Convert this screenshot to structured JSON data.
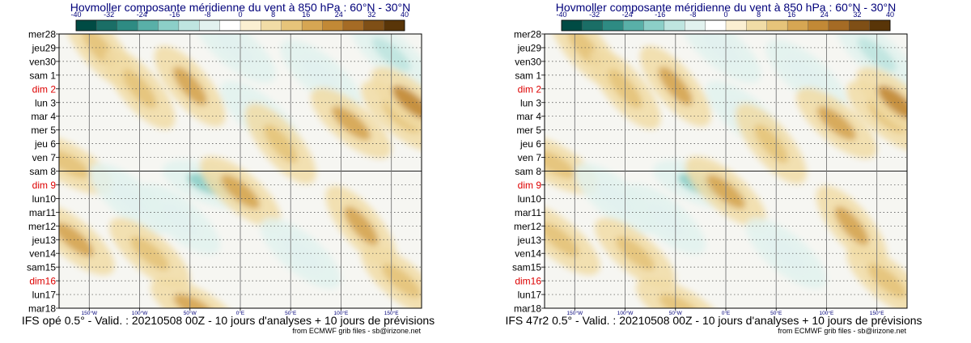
{
  "chart_data": [
    {
      "type": "heatmap",
      "title": "Hovmoller composante méridienne du vent à 850 hPa : 60°N - 30°N",
      "colorbar": {
        "ticks": [
          "-40",
          "-32",
          "-24",
          "-16",
          "-8",
          "0",
          "8",
          "16",
          "24",
          "32",
          "40"
        ],
        "colors": [
          "#004b44",
          "#1a6e66",
          "#2e8b83",
          "#59b0a8",
          "#8ccfc8",
          "#bfe5e0",
          "#e2f2ef",
          "#ffffff",
          "#fbefd2",
          "#f1dca6",
          "#e6c47a",
          "#d6a653",
          "#c28936",
          "#a56b25",
          "#7f4f16",
          "#593508"
        ]
      },
      "y_labels": [
        {
          "text": "mer28",
          "weekend": false
        },
        {
          "text": "jeu29",
          "weekend": false
        },
        {
          "text": "ven30",
          "weekend": false
        },
        {
          "text": "sam 1",
          "weekend": false
        },
        {
          "text": "dim 2",
          "weekend": true
        },
        {
          "text": "lun 3",
          "weekend": false
        },
        {
          "text": "mar 4",
          "weekend": false
        },
        {
          "text": "mer 5",
          "weekend": false
        },
        {
          "text": "jeu 6",
          "weekend": false
        },
        {
          "text": "ven 7",
          "weekend": false
        },
        {
          "text": "sam 8",
          "weekend": false
        },
        {
          "text": "dim 9",
          "weekend": true
        },
        {
          "text": "lun10",
          "weekend": false
        },
        {
          "text": "mar11",
          "weekend": false
        },
        {
          "text": "mer12",
          "weekend": false
        },
        {
          "text": "jeu13",
          "weekend": false
        },
        {
          "text": "ven14",
          "weekend": false
        },
        {
          "text": "sam15",
          "weekend": false
        },
        {
          "text": "dim16",
          "weekend": true
        },
        {
          "text": "lun17",
          "weekend": false
        },
        {
          "text": "mar18",
          "weekend": false
        }
      ],
      "analysis_forecast_split": "sam 8",
      "x_ticks": [
        "150°W",
        "100°W",
        "50°W",
        "0°E",
        "50°E",
        "100°E",
        "150°E"
      ],
      "x_range": [
        -180,
        180
      ],
      "footer": "IFS opé 0.5° - Valid. : 20210508 00Z - 10 jours d'analyses + 10 jours de prévisions",
      "credit": "from ECMWF grib files - sb@irizone.net",
      "features": [
        {
          "lon": -170,
          "day": 9.5,
          "value": 14,
          "slope": -12
        },
        {
          "lon": -165,
          "day": 15,
          "value": 16,
          "slope": -10
        },
        {
          "lon": -140,
          "day": 1,
          "value": 12,
          "slope": -8
        },
        {
          "lon": -110,
          "day": 12,
          "value": -10,
          "slope": -10
        },
        {
          "lon": -100,
          "day": 4,
          "value": 10,
          "slope": -8
        },
        {
          "lon": -90,
          "day": 16,
          "value": 10,
          "slope": -10
        },
        {
          "lon": -50,
          "day": 3.8,
          "value": 16,
          "slope": -8
        },
        {
          "lon": -30,
          "day": 11,
          "value": -16,
          "slope": -14
        },
        {
          "lon": -5,
          "day": 1,
          "value": -8,
          "slope": -10
        },
        {
          "lon": 0,
          "day": 11.5,
          "value": 18,
          "slope": -10
        },
        {
          "lon": -45,
          "day": 20,
          "value": 16,
          "slope": -12
        },
        {
          "lon": 20,
          "day": 6,
          "value": -8,
          "slope": -10
        },
        {
          "lon": 40,
          "day": 8,
          "value": 10,
          "slope": -8
        },
        {
          "lon": 80,
          "day": 3,
          "value": -8,
          "slope": -10
        },
        {
          "lon": 110,
          "day": 6.5,
          "value": 18,
          "slope": -10
        },
        {
          "lon": 120,
          "day": 14,
          "value": 16,
          "slope": -8
        },
        {
          "lon": 150,
          "day": 1.5,
          "value": -12,
          "slope": -10
        },
        {
          "lon": 160,
          "day": 6,
          "value": 14,
          "slope": -10
        },
        {
          "lon": 170,
          "day": 5,
          "value": 22,
          "slope": -10
        },
        {
          "lon": 160,
          "day": 18,
          "value": 12,
          "slope": -10
        },
        {
          "lon": -60,
          "day": 13.5,
          "value": -6,
          "slope": -10
        },
        {
          "lon": 60,
          "day": 16,
          "value": -6,
          "slope": -10
        }
      ]
    },
    {
      "type": "heatmap",
      "title": "Hovmoller composante méridienne du vent à 850 hPa : 60°N - 30°N",
      "colorbar": {
        "ticks": [
          "-40",
          "-32",
          "-24",
          "-16",
          "-8",
          "0",
          "8",
          "16",
          "24",
          "32",
          "40"
        ],
        "colors": [
          "#004b44",
          "#1a6e66",
          "#2e8b83",
          "#59b0a8",
          "#8ccfc8",
          "#bfe5e0",
          "#e2f2ef",
          "#ffffff",
          "#fbefd2",
          "#f1dca6",
          "#e6c47a",
          "#d6a653",
          "#c28936",
          "#a56b25",
          "#7f4f16",
          "#593508"
        ]
      },
      "y_labels": [
        {
          "text": "mer28",
          "weekend": false
        },
        {
          "text": "jeu29",
          "weekend": false
        },
        {
          "text": "ven30",
          "weekend": false
        },
        {
          "text": "sam 1",
          "weekend": false
        },
        {
          "text": "dim 2",
          "weekend": true
        },
        {
          "text": "lun 3",
          "weekend": false
        },
        {
          "text": "mar 4",
          "weekend": false
        },
        {
          "text": "mer 5",
          "weekend": false
        },
        {
          "text": "jeu 6",
          "weekend": false
        },
        {
          "text": "ven 7",
          "weekend": false
        },
        {
          "text": "sam 8",
          "weekend": false
        },
        {
          "text": "dim 9",
          "weekend": true
        },
        {
          "text": "lun10",
          "weekend": false
        },
        {
          "text": "mar11",
          "weekend": false
        },
        {
          "text": "mer12",
          "weekend": false
        },
        {
          "text": "jeu13",
          "weekend": false
        },
        {
          "text": "ven14",
          "weekend": false
        },
        {
          "text": "sam15",
          "weekend": false
        },
        {
          "text": "dim16",
          "weekend": true
        },
        {
          "text": "lun17",
          "weekend": false
        },
        {
          "text": "mar18",
          "weekend": false
        }
      ],
      "analysis_forecast_split": "sam 8",
      "x_ticks": [
        "150°W",
        "100°W",
        "50°W",
        "0°E",
        "50°E",
        "100°E",
        "150°E"
      ],
      "x_range": [
        -180,
        180
      ],
      "footer": "IFS 47r2 0.5° - Valid. : 20210508 00Z - 10 jours d'analyses + 10 jours de prévisions",
      "credit": "from ECMWF grib files - sb@irizone.net",
      "features": [
        {
          "lon": -170,
          "day": 9.5,
          "value": 14,
          "slope": -12
        },
        {
          "lon": -165,
          "day": 15,
          "value": 14,
          "slope": -10
        },
        {
          "lon": -140,
          "day": 1,
          "value": 12,
          "slope": -8
        },
        {
          "lon": -110,
          "day": 12,
          "value": -10,
          "slope": -10
        },
        {
          "lon": -100,
          "day": 4,
          "value": 10,
          "slope": -8
        },
        {
          "lon": -90,
          "day": 16,
          "value": 10,
          "slope": -10
        },
        {
          "lon": -50,
          "day": 3.8,
          "value": 16,
          "slope": -8
        },
        {
          "lon": -25,
          "day": 11,
          "value": -16,
          "slope": -14
        },
        {
          "lon": -5,
          "day": 1,
          "value": -8,
          "slope": -10
        },
        {
          "lon": 0,
          "day": 11.5,
          "value": 16,
          "slope": -10
        },
        {
          "lon": -45,
          "day": 20,
          "value": 14,
          "slope": -12
        },
        {
          "lon": 20,
          "day": 6,
          "value": -8,
          "slope": -10
        },
        {
          "lon": 45,
          "day": 8,
          "value": 10,
          "slope": -8
        },
        {
          "lon": 80,
          "day": 3,
          "value": -8,
          "slope": -10
        },
        {
          "lon": 110,
          "day": 6.5,
          "value": 16,
          "slope": -10
        },
        {
          "lon": 125,
          "day": 14,
          "value": 16,
          "slope": -8
        },
        {
          "lon": 150,
          "day": 1.5,
          "value": -12,
          "slope": -10
        },
        {
          "lon": 160,
          "day": 6,
          "value": 14,
          "slope": -10
        },
        {
          "lon": 170,
          "day": 5,
          "value": 22,
          "slope": -10
        },
        {
          "lon": 160,
          "day": 18,
          "value": 12,
          "slope": -10
        },
        {
          "lon": -60,
          "day": 13.5,
          "value": -6,
          "slope": -10
        },
        {
          "lon": 60,
          "day": 16,
          "value": -6,
          "slope": -10
        }
      ]
    }
  ]
}
